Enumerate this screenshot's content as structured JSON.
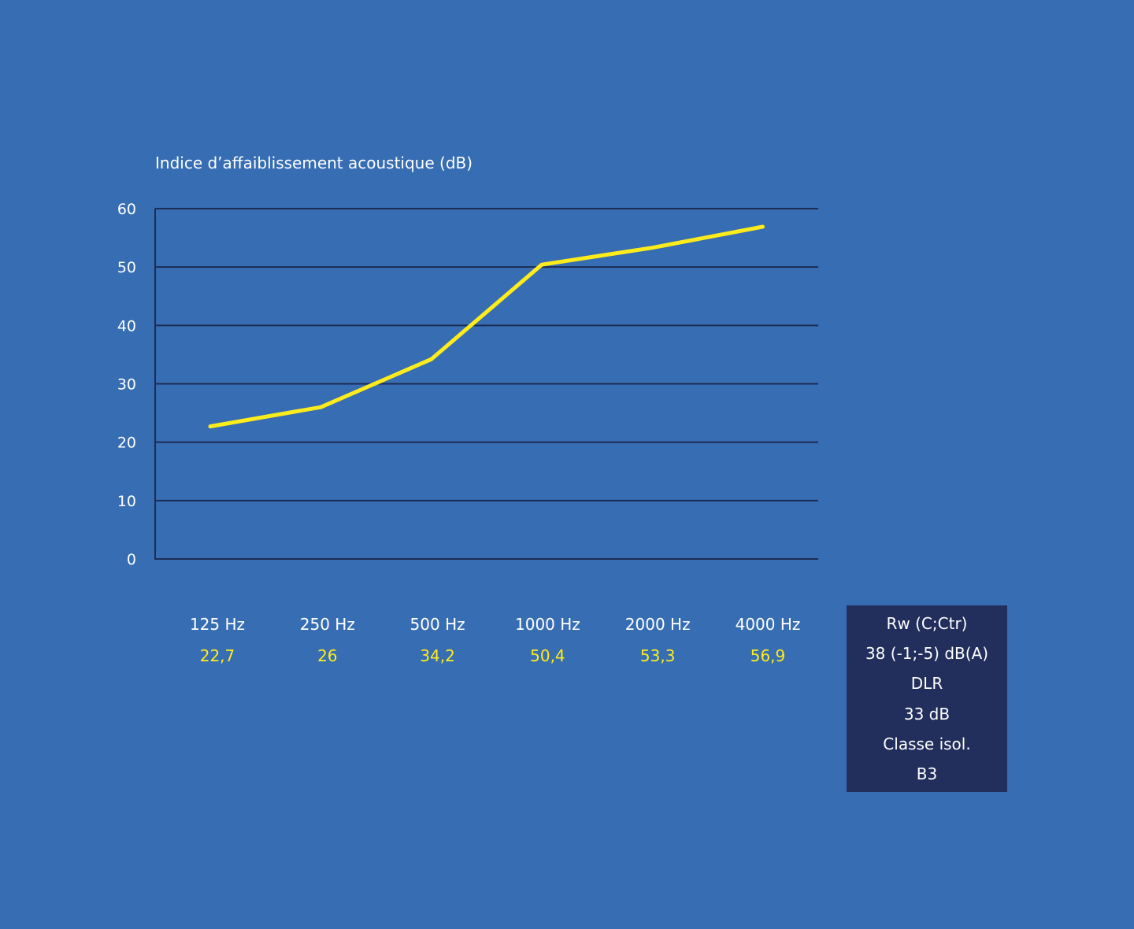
{
  "chart_data": {
    "type": "line",
    "ylabel": "Indice d’affaiblissement acoustique (dB)",
    "xlabel": "",
    "title": "",
    "ylim": [
      0,
      60
    ],
    "yticks": [
      "0",
      "10",
      "20",
      "30",
      "40",
      "50",
      "60"
    ],
    "grid": true,
    "categories": [
      "125 Hz",
      "250 Hz",
      "500 Hz",
      "1000 Hz",
      "2000 Hz",
      "4000 Hz"
    ],
    "value_labels": [
      "22,7",
      "26",
      "34,2",
      "50,4",
      "53,3",
      "56,9"
    ],
    "series": [
      {
        "values": [
          22.7,
          26,
          34.2,
          50.4,
          53.3,
          56.9
        ],
        "color": "#ffec1a"
      }
    ]
  },
  "info_box": {
    "rw_label": "Rw (C;Ctr)",
    "rw_value": "38 (-1;-5) dB(A)",
    "dlr_prefix": "DL",
    "dlr_suffix": "R",
    "dlr_value": "33 dB",
    "class_label": "Classe isol.",
    "class_value": "B3"
  },
  "colors": {
    "background": "#376db3",
    "grid": "#1d2c55",
    "line": "#ffec1a",
    "box": "#222e5b"
  }
}
